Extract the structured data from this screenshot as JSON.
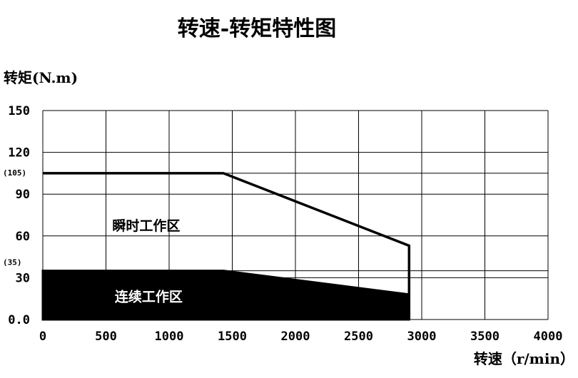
{
  "chart_data": {
    "type": "area",
    "title": "转速-转矩特性图",
    "xlabel": "转速（r/min）",
    "ylabel": "转矩(N.m)",
    "xlim": [
      0,
      4000
    ],
    "ylim": [
      0,
      150
    ],
    "x_ticks": [
      0,
      500,
      1000,
      1500,
      2000,
      2500,
      3000,
      3500,
      4000
    ],
    "x_tick_labels": [
      "0",
      "500",
      "1000",
      "1500",
      "2000",
      "2500",
      "3000",
      "3500",
      "4000"
    ],
    "y_ticks": [
      0,
      30,
      60,
      90,
      120,
      150
    ],
    "y_tick_labels": [
      "0.0",
      "30",
      "60",
      "90",
      "120",
      "150"
    ],
    "y_reference_labels": [
      {
        "value": 105,
        "label": "(105)"
      },
      {
        "value": 35,
        "label": "(35)"
      }
    ],
    "grid": true,
    "series": [
      {
        "name": "瞬时工作区",
        "fill": "none",
        "points": [
          [
            0,
            105
          ],
          [
            1430,
            105
          ],
          [
            2900,
            53
          ],
          [
            2900,
            0
          ]
        ]
      },
      {
        "name": "连续工作区",
        "fill": "solid",
        "points": [
          [
            0,
            35
          ],
          [
            1430,
            35
          ],
          [
            2900,
            18
          ],
          [
            2900,
            0
          ]
        ]
      }
    ],
    "colors": {
      "line": "#000000",
      "fill": "#000000",
      "grid": "#000000",
      "background": "#ffffff"
    }
  }
}
